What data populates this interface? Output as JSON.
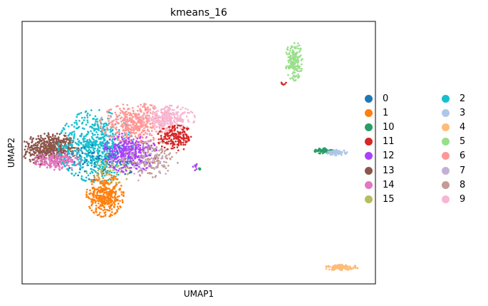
{
  "chart_data": {
    "type": "scatter",
    "title": "kmeans_16",
    "xlabel": "UMAP1",
    "ylabel": "UMAP2",
    "xticks": false,
    "yticks": false,
    "grid": false,
    "legend_position": "right, outside plot, two columns",
    "xlim": [
      -6.0,
      17.0
    ],
    "ylim": [
      -8.0,
      8.0
    ],
    "series": [
      {
        "name": "0",
        "color": "#1f77b4"
      },
      {
        "name": "1",
        "color": "#ff7f0e"
      },
      {
        "name": "10",
        "color": "#279e68"
      },
      {
        "name": "11",
        "color": "#d62728"
      },
      {
        "name": "12",
        "color": "#aa40fc"
      },
      {
        "name": "13",
        "color": "#8c564b"
      },
      {
        "name": "14",
        "color": "#e377c2"
      },
      {
        "name": "15",
        "color": "#b5bd61"
      },
      {
        "name": "2",
        "color": "#17becf"
      },
      {
        "name": "3",
        "color": "#aec7e8"
      },
      {
        "name": "4",
        "color": "#ffbb78"
      },
      {
        "name": "5",
        "color": "#98df8a"
      },
      {
        "name": "6",
        "color": "#ff9896"
      },
      {
        "name": "7",
        "color": "#c5b0d5"
      },
      {
        "name": "8",
        "color": "#c49c94"
      },
      {
        "name": "9",
        "color": "#f7b6d2"
      }
    ],
    "clusters": [
      {
        "series": "13",
        "center": [
          -4.2,
          0.2
        ],
        "spread": [
          0.85,
          0.45
        ],
        "n": 520
      },
      {
        "series": "14",
        "center": [
          -3.7,
          -0.5
        ],
        "spread": [
          0.7,
          0.25
        ],
        "n": 200
      },
      {
        "series": "2",
        "center": [
          -1.2,
          0.4
        ],
        "spread": [
          1.1,
          1.0
        ],
        "n": 650
      },
      {
        "series": "1",
        "center": [
          -0.6,
          -2.6
        ],
        "spread": [
          0.55,
          0.6
        ],
        "n": 380
      },
      {
        "series": "12",
        "center": [
          1.0,
          0.0
        ],
        "spread": [
          0.8,
          0.55
        ],
        "n": 420
      },
      {
        "series": "6",
        "center": [
          1.4,
          1.8
        ],
        "spread": [
          1.05,
          0.55
        ],
        "n": 460
      },
      {
        "series": "9",
        "center": [
          3.5,
          2.1
        ],
        "spread": [
          0.8,
          0.35
        ],
        "n": 260
      },
      {
        "series": "11",
        "center": [
          4.0,
          0.9
        ],
        "spread": [
          0.55,
          0.35
        ],
        "n": 190
      },
      {
        "series": "8",
        "center": [
          2.4,
          -0.4
        ],
        "spread": [
          0.8,
          0.5
        ],
        "n": 150
      },
      {
        "series": "0",
        "center": [
          -0.8,
          -0.6
        ],
        "spread": [
          1.0,
          0.5
        ],
        "n": 60
      },
      {
        "series": "15",
        "center": [
          -0.3,
          -1.0
        ],
        "spread": [
          0.7,
          0.4
        ],
        "n": 50
      },
      {
        "series": "7",
        "center": [
          1.8,
          -0.6
        ],
        "spread": [
          0.9,
          0.5
        ],
        "n": 45
      },
      {
        "series": "5",
        "center": [
          11.7,
          5.6
        ],
        "spread": [
          0.25,
          0.55
        ],
        "n": 170
      },
      {
        "series": "10",
        "center": [
          13.7,
          0.1
        ],
        "spread": [
          0.3,
          0.08
        ],
        "n": 90
      },
      {
        "series": "3",
        "center": [
          14.5,
          0.0
        ],
        "spread": [
          0.3,
          0.08
        ],
        "n": 70
      },
      {
        "series": "4",
        "center": [
          14.8,
          -7.0
        ],
        "spread": [
          0.5,
          0.08
        ],
        "n": 110
      },
      {
        "series": "12",
        "center": [
          5.3,
          -0.9
        ],
        "spread": [
          0.08,
          0.1
        ],
        "n": 8
      },
      {
        "series": "10",
        "center": [
          5.6,
          -1.0
        ],
        "spread": [
          0.06,
          0.06
        ],
        "n": 6
      },
      {
        "series": "11",
        "center": [
          11.0,
          4.2
        ],
        "spread": [
          0.1,
          0.05
        ],
        "n": 6
      }
    ]
  }
}
